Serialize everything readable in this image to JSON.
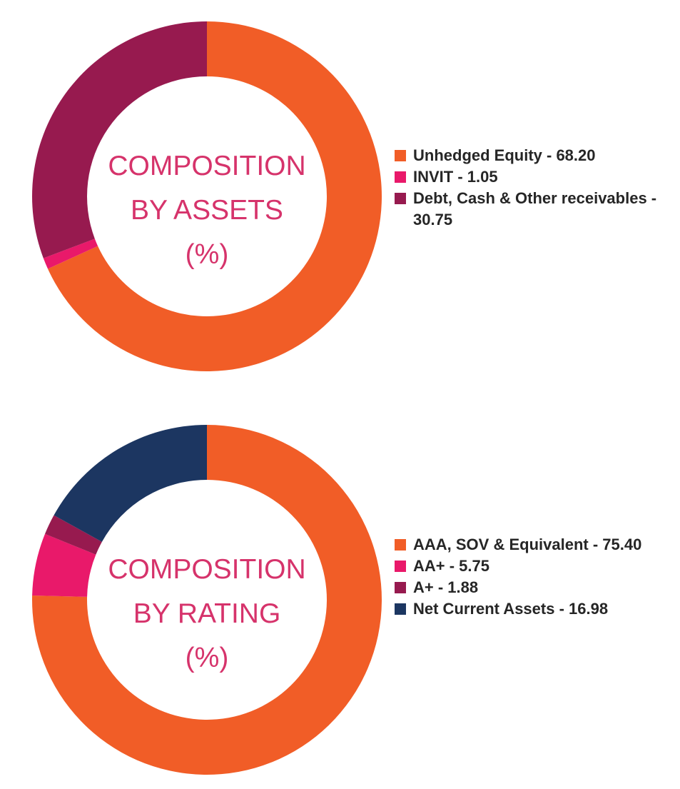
{
  "chart_data": [
    {
      "type": "pie",
      "donut": true,
      "center_label": [
        "COMPOSITION",
        "BY ASSETS",
        "(%)"
      ],
      "slices": [
        {
          "label": "Unhedged Equity - 68.20",
          "value": 68.2,
          "color": "#f15d27"
        },
        {
          "label": "INVIT - 1.05",
          "value": 1.05,
          "color": "#e9196a"
        },
        {
          "label": "Debt, Cash & Other receivables - 30.75",
          "value": 30.75,
          "color": "#971a4f"
        }
      ],
      "legend_position": "right"
    },
    {
      "type": "pie",
      "donut": true,
      "center_label": [
        "COMPOSITION",
        "BY RATING",
        "(%)"
      ],
      "slices": [
        {
          "label": "AAA, SOV & Equivalent - 75.40",
          "value": 75.4,
          "color": "#f15d27"
        },
        {
          "label": "AA+ - 5.75",
          "value": 5.75,
          "color": "#e9196a"
        },
        {
          "label": "A+ - 1.88",
          "value": 1.88,
          "color": "#971a4f"
        },
        {
          "label": "Net Current Assets - 16.98",
          "value": 16.98,
          "color": "#1c3661"
        }
      ],
      "legend_position": "right"
    }
  ]
}
